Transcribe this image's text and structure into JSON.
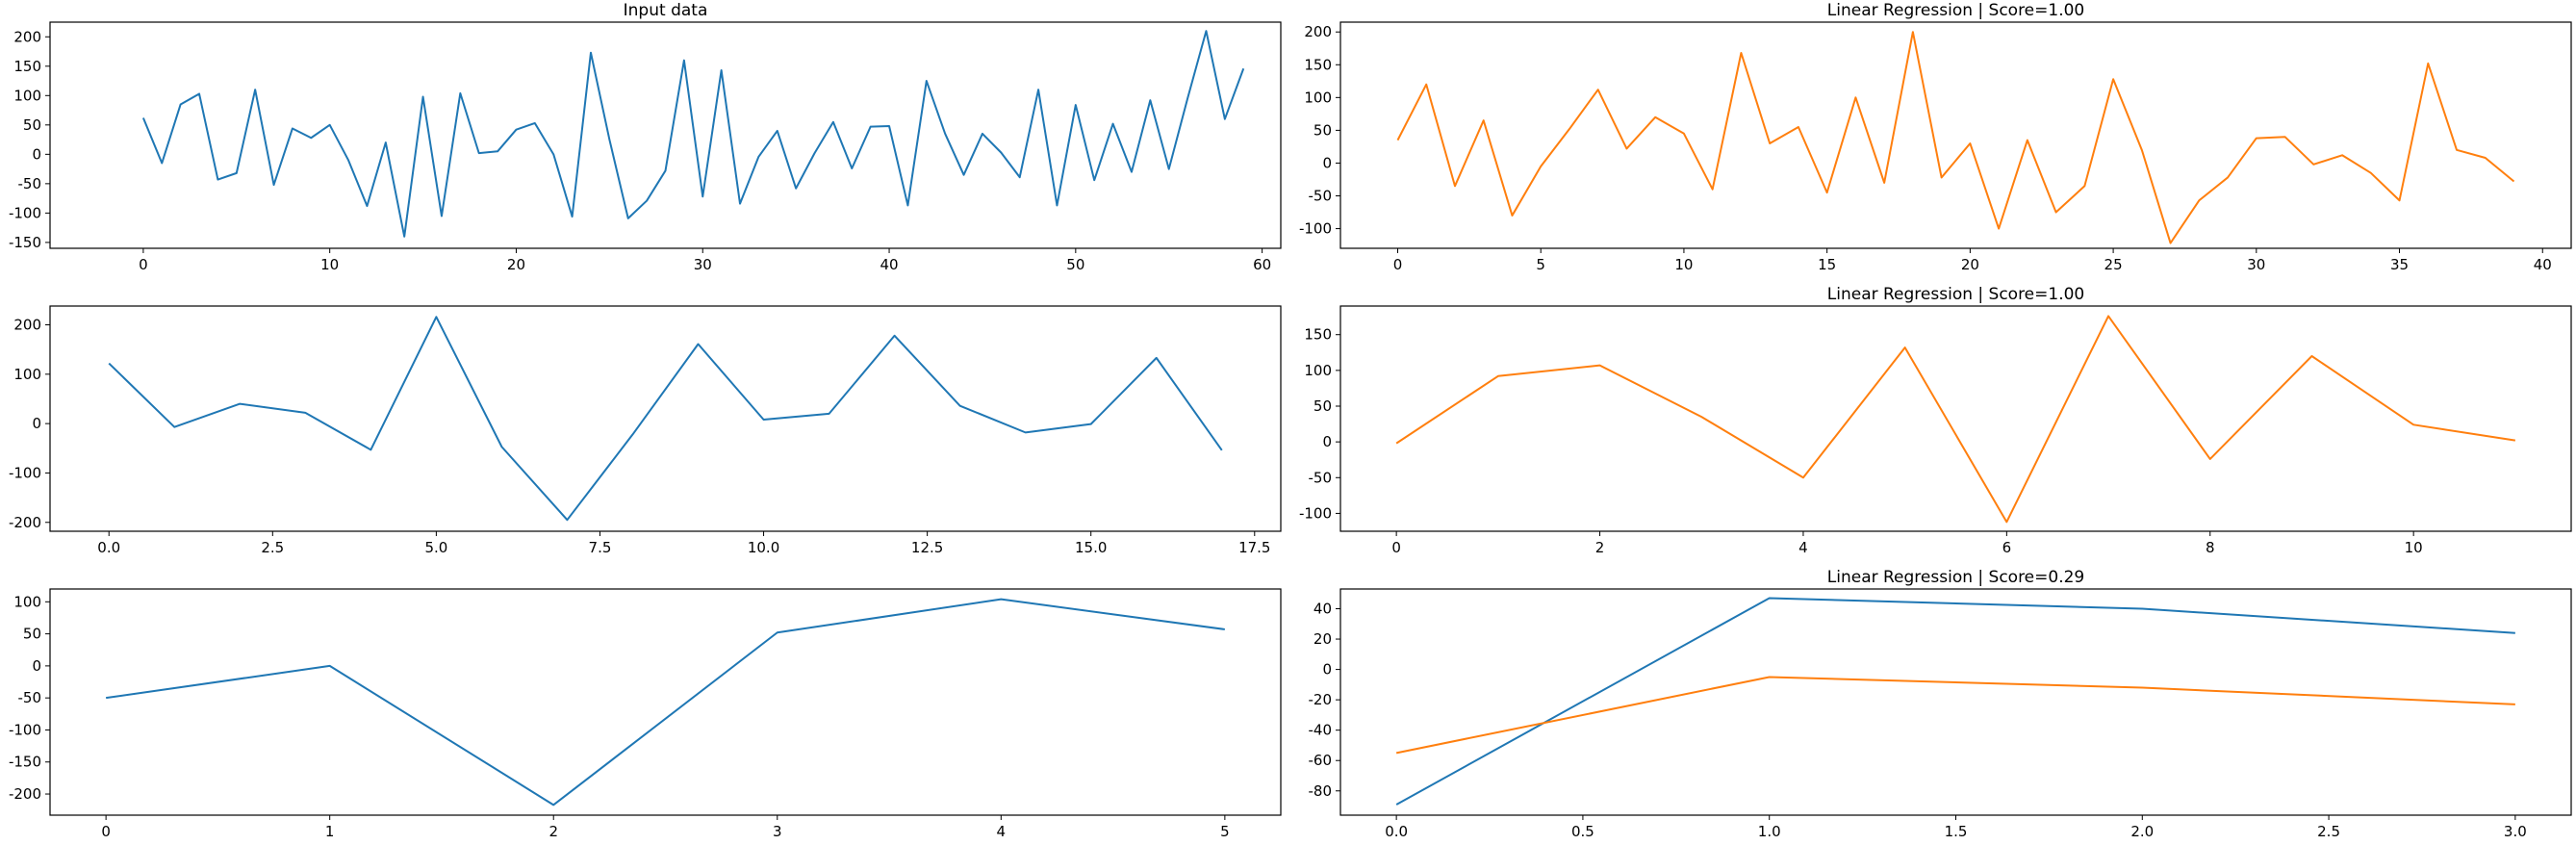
{
  "chart_data": [
    {
      "type": "line",
      "title": "Input data",
      "xlabel": "",
      "ylabel": "",
      "xlim": [
        -5,
        61
      ],
      "ylim": [
        -160,
        225
      ],
      "xticks": [
        0,
        10,
        20,
        30,
        40,
        50,
        60
      ],
      "yticks": [
        -150,
        -100,
        -50,
        0,
        50,
        100,
        150,
        200
      ],
      "grid": false,
      "series": [
        {
          "color": "#1f77b4",
          "x": [
            0,
            1,
            2,
            3,
            4,
            5,
            6,
            7,
            8,
            9,
            10,
            11,
            12,
            13,
            14,
            15,
            16,
            17,
            18,
            19,
            20,
            21,
            22,
            23,
            24,
            25,
            26,
            27,
            28,
            29,
            30,
            31,
            32,
            33,
            34,
            35,
            36,
            37,
            38,
            39,
            40,
            41,
            42,
            43,
            44,
            45,
            46,
            47,
            48,
            49,
            50,
            51,
            52,
            53,
            54,
            55,
            56,
            57,
            58,
            59
          ],
          "values": [
            62,
            -15,
            85,
            103,
            -43,
            -32,
            110,
            -52,
            44,
            28,
            50,
            -10,
            -88,
            20,
            -140,
            98,
            -105,
            104,
            2,
            5,
            42,
            53,
            0,
            -106,
            173,
            25,
            -109,
            -79,
            -28,
            160,
            -72,
            143,
            -84,
            -4,
            40,
            -58,
            2,
            55,
            -24,
            47,
            48,
            -87,
            125,
            35,
            -35,
            35,
            3,
            -39,
            110,
            -87,
            84,
            -44,
            52,
            -30,
            92,
            -25,
            95,
            210,
            60,
            146
          ]
        }
      ]
    },
    {
      "type": "line",
      "title": "Linear Regression | Score=1.00",
      "xlabel": "",
      "ylabel": "",
      "xlim": [
        -2,
        41
      ],
      "ylim": [
        -130,
        215
      ],
      "xticks": [
        0,
        5,
        10,
        15,
        20,
        25,
        30,
        35,
        40
      ],
      "yticks": [
        -100,
        -50,
        0,
        50,
        100,
        150,
        200
      ],
      "grid": false,
      "series": [
        {
          "color": "#ff7f0e",
          "x": [
            0,
            1,
            2,
            3,
            4,
            5,
            6,
            7,
            8,
            9,
            10,
            11,
            12,
            13,
            14,
            15,
            16,
            17,
            18,
            19,
            20,
            21,
            22,
            23,
            24,
            25,
            26,
            27,
            28,
            29,
            30,
            31,
            32,
            33,
            34,
            35,
            36,
            37,
            38,
            39
          ],
          "values": [
            35,
            120,
            -35,
            65,
            -80,
            -5,
            52,
            112,
            22,
            70,
            45,
            -40,
            168,
            30,
            55,
            -45,
            100,
            -30,
            200,
            -22,
            30,
            -100,
            35,
            -75,
            -35,
            128,
            20,
            -122,
            -57,
            -22,
            38,
            40,
            -2,
            12,
            -15,
            -57,
            152,
            20,
            8,
            -28
          ]
        }
      ]
    },
    {
      "type": "line",
      "title": "",
      "xlabel": "",
      "ylabel": "",
      "xlim": [
        -0.9,
        17.9
      ],
      "ylim": [
        -218,
        238
      ],
      "xticks": [
        0.0,
        2.5,
        5.0,
        7.5,
        10.0,
        12.5,
        15.0,
        17.5
      ],
      "xtick_labels": [
        "0.0",
        "2.5",
        "5.0",
        "7.5",
        "10.0",
        "12.5",
        "15.0",
        "17.5"
      ],
      "yticks": [
        -200,
        -100,
        0,
        100,
        200
      ],
      "grid": false,
      "series": [
        {
          "color": "#1f77b4",
          "x": [
            0,
            1,
            2,
            3,
            4,
            5,
            6,
            7,
            8,
            9,
            10,
            11,
            12,
            13,
            14,
            15,
            16,
            17
          ],
          "values": [
            122,
            -7,
            40,
            22,
            -53,
            216,
            -47,
            -195,
            -22,
            161,
            8,
            20,
            178,
            36,
            -18,
            -1,
            133,
            -54
          ]
        }
      ]
    },
    {
      "type": "line",
      "title": "Linear Regression | Score=1.00",
      "xlabel": "",
      "ylabel": "",
      "xlim": [
        -0.55,
        11.55
      ],
      "ylim": [
        -125,
        190
      ],
      "xticks": [
        0,
        2,
        4,
        6,
        8,
        10
      ],
      "yticks": [
        -100,
        -50,
        0,
        50,
        100,
        150
      ],
      "grid": false,
      "series": [
        {
          "color": "#ff7f0e",
          "x": [
            0,
            1,
            2,
            3,
            4,
            5,
            6,
            7,
            8,
            9,
            10,
            11
          ],
          "values": [
            -2,
            92,
            107,
            35,
            -50,
            132,
            -112,
            176,
            -24,
            120,
            24,
            2
          ]
        }
      ]
    },
    {
      "type": "line",
      "title": "",
      "xlabel": "",
      "ylabel": "",
      "xlim": [
        -0.25,
        5.25
      ],
      "ylim": [
        -233,
        120
      ],
      "xticks": [
        0,
        1,
        2,
        3,
        4,
        5
      ],
      "yticks": [
        -200,
        -150,
        -100,
        -50,
        0,
        50,
        100
      ],
      "grid": false,
      "series": [
        {
          "color": "#1f77b4",
          "x": [
            0,
            1,
            2,
            3,
            4,
            5
          ],
          "values": [
            -50,
            0,
            -217,
            52,
            104,
            57
          ]
        }
      ]
    },
    {
      "type": "line",
      "title": "Linear Regression | Score=0.29",
      "xlabel": "",
      "ylabel": "",
      "xlim": [
        -0.15,
        3.15
      ],
      "ylim": [
        -96,
        53
      ],
      "xticks": [
        0.0,
        0.5,
        1.0,
        1.5,
        2.0,
        2.5,
        3.0
      ],
      "xtick_labels": [
        "0.0",
        "0.5",
        "1.0",
        "1.5",
        "2.0",
        "2.5",
        "3.0"
      ],
      "yticks": [
        -80,
        -60,
        -40,
        -20,
        0,
        20,
        40
      ],
      "grid": false,
      "series": [
        {
          "color": "#1f77b4",
          "x": [
            0,
            1,
            2,
            3
          ],
          "values": [
            -89,
            47,
            40,
            24
          ]
        },
        {
          "color": "#ff7f0e",
          "x": [
            0,
            1,
            2,
            3
          ],
          "values": [
            -55,
            -5,
            -12,
            -23
          ]
        }
      ]
    }
  ]
}
